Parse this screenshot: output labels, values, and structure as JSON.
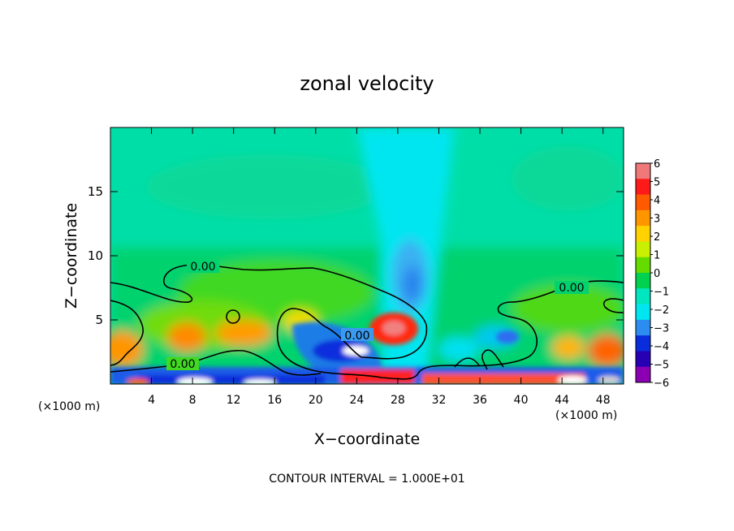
{
  "chart_data": {
    "type": "heatmap",
    "title": "zonal velocity",
    "xlabel": "X−coordinate",
    "ylabel": "Z−coordinate",
    "x_unit_left": "(×1000 m)",
    "x_unit_right": "(×1000 m)",
    "xlim": [
      0,
      50
    ],
    "ylim": [
      0,
      20
    ],
    "xticks": [
      4,
      8,
      12,
      16,
      20,
      24,
      28,
      32,
      36,
      40,
      44,
      48
    ],
    "xtick_labels": [
      "4",
      "8",
      "12",
      "16",
      "20",
      "24",
      "28",
      "32",
      "36",
      "40",
      "44",
      "48"
    ],
    "yticks": [
      5,
      10,
      15
    ],
    "ytick_labels": [
      "5",
      "10",
      "15"
    ],
    "colorbar": {
      "levels": [
        6,
        5,
        4,
        3,
        2,
        1,
        0,
        -1,
        -2,
        -3,
        -4,
        -5,
        -6
      ],
      "labels": [
        "6",
        "5",
        "4",
        "3",
        "2",
        "1",
        "0",
        "−1",
        "−2",
        "−3",
        "−4",
        "−5",
        "−6"
      ],
      "colors": [
        "#f07878",
        "#ff1a1a",
        "#ff5a00",
        "#ff9600",
        "#ffd200",
        "#c8f000",
        "#64dc00",
        "#00d250",
        "#00e6be",
        "#00e6f0",
        "#2d8cf0",
        "#0a2ddc",
        "#2800b4",
        "#8c00b4"
      ]
    },
    "contour_labels": [
      "0.00",
      "0.00",
      "0.00",
      "0.00"
    ],
    "footer": "CONTOUR INTERVAL = 1.000E+01"
  }
}
